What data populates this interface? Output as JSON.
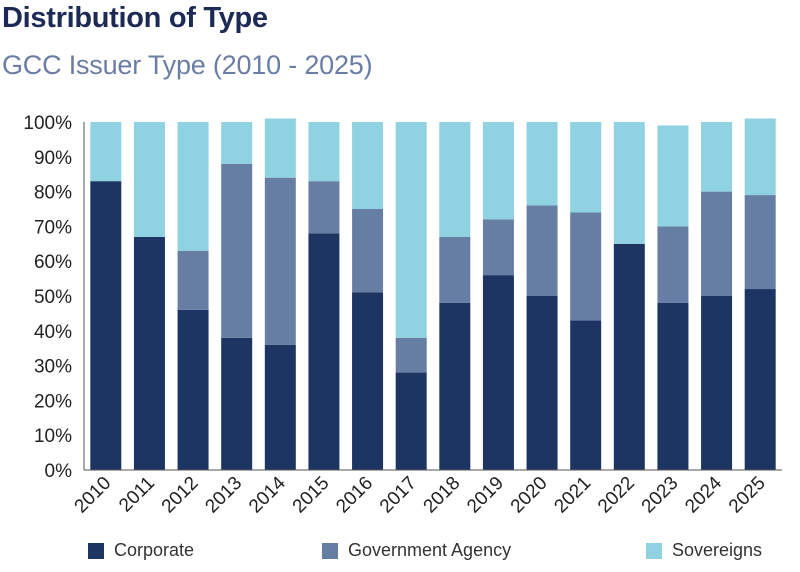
{
  "header": {
    "title": "Distribution of Type",
    "subtitle": "GCC Issuer Type (2010 - 2025)"
  },
  "colors": {
    "corporate": "#1d3563",
    "government_agency": "#677ea4",
    "sovereigns": "#8fd2e1",
    "axis": "#555555",
    "grid": "#d9d9d9"
  },
  "chart_data": {
    "type": "bar",
    "stacked": true,
    "categories": [
      "2010",
      "2011",
      "2012",
      "2013",
      "2014",
      "2015",
      "2016",
      "2017",
      "2018",
      "2019",
      "2020",
      "2021",
      "2022",
      "2023",
      "2024",
      "2025"
    ],
    "series": [
      {
        "name": "Corporate",
        "values": [
          83,
          67,
          46,
          38,
          36,
          68,
          51,
          28,
          48,
          56,
          50,
          43,
          65,
          48,
          50,
          52
        ]
      },
      {
        "name": "Government Agency",
        "values": [
          0,
          0,
          17,
          50,
          48,
          15,
          24,
          10,
          19,
          16,
          26,
          31,
          0,
          22,
          30,
          27
        ]
      },
      {
        "name": "Sovereigns",
        "values": [
          17,
          33,
          37,
          12,
          17,
          17,
          25,
          62,
          33,
          28,
          24,
          26,
          35,
          29,
          20,
          22
        ]
      }
    ],
    "ylim": [
      0,
      100
    ],
    "yticks": [
      "0%",
      "10%",
      "20%",
      "30%",
      "40%",
      "50%",
      "60%",
      "70%",
      "80%",
      "90%",
      "100%"
    ],
    "grid": false,
    "legend_position": "bottom"
  }
}
